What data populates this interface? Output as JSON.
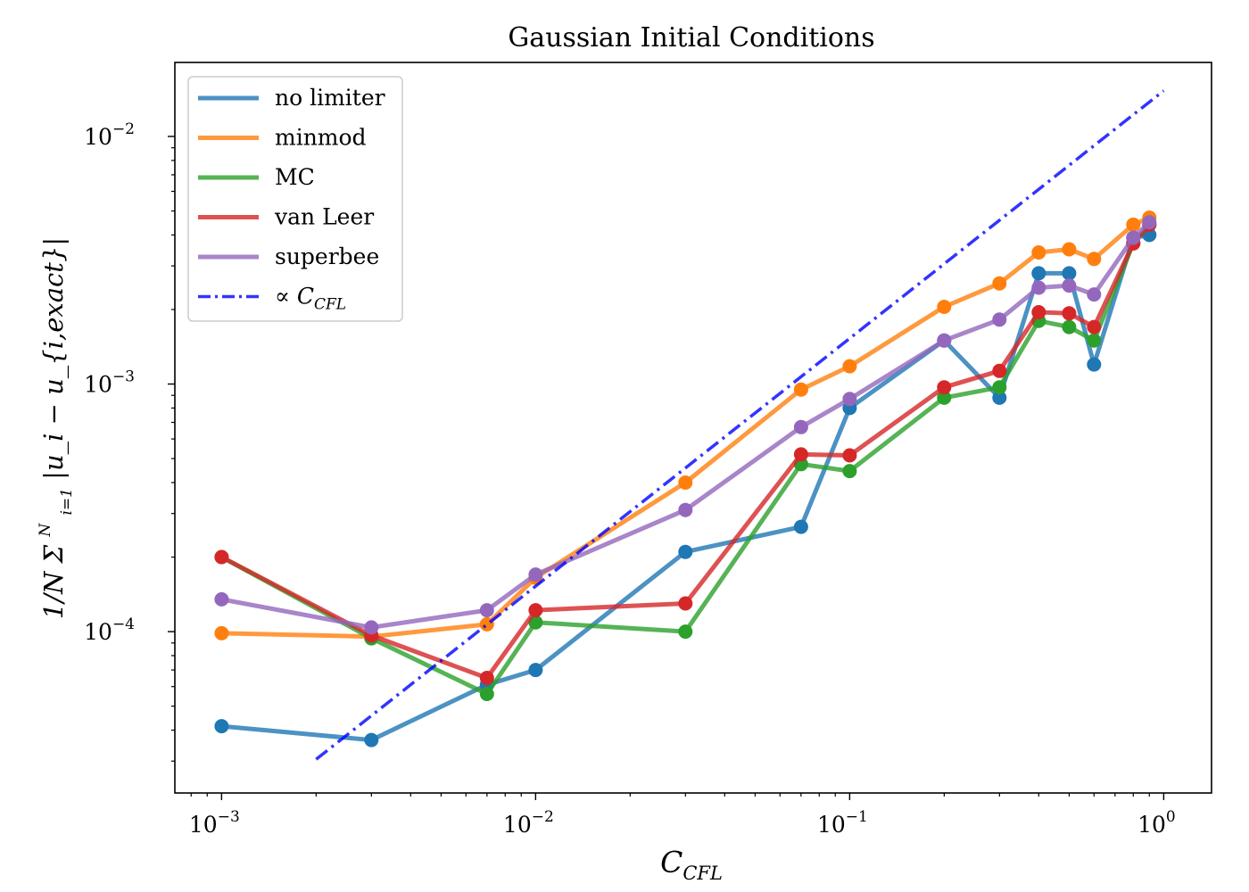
{
  "chart_data": {
    "type": "line",
    "title": "Gaussian Initial Conditions",
    "xlabel": {
      "main": "C",
      "sub": "CFL"
    },
    "ylabel": {
      "prefix": "1/N Σ",
      "sum_upper": "N",
      "sum_lower": "i=1",
      "body": "|u_i − u_{i,exact}|"
    },
    "xscale": "log",
    "yscale": "log",
    "xlim": [
      0.00071,
      1.42
    ],
    "ylim": [
      2.23e-05,
      0.0199
    ],
    "x_ticks": [
      {
        "value": 0.001,
        "base": "10",
        "exp": "−3"
      },
      {
        "value": 0.01,
        "base": "10",
        "exp": "−2"
      },
      {
        "value": 0.1,
        "base": "10",
        "exp": "−1"
      },
      {
        "value": 1,
        "base": "10",
        "exp": "0"
      }
    ],
    "y_ticks": [
      {
        "value": 0.0001,
        "base": "10",
        "exp": "−4"
      },
      {
        "value": 0.001,
        "base": "10",
        "exp": "−3"
      },
      {
        "value": 0.01,
        "base": "10",
        "exp": "−2"
      }
    ],
    "grid": false,
    "legend_position": "top-left",
    "series": [
      {
        "name": "no limiter",
        "color": "#1f77b4",
        "x": [
          0.001,
          0.003,
          0.007,
          0.01,
          0.03,
          0.07,
          0.1,
          0.2,
          0.3,
          0.4,
          0.5,
          0.6,
          0.8,
          0.9
        ],
        "y": [
          4.15e-05,
          3.65e-05,
          6.1e-05,
          7e-05,
          0.00021,
          0.000265,
          0.0008,
          0.0015,
          0.00088,
          0.0028,
          0.0028,
          0.0012,
          0.0039,
          0.004
        ]
      },
      {
        "name": "minmod",
        "color": "#ff7f0e",
        "x": [
          0.001,
          0.003,
          0.007,
          0.01,
          0.03,
          0.07,
          0.1,
          0.2,
          0.3,
          0.4,
          0.5,
          0.6,
          0.8,
          0.9
        ],
        "y": [
          9.85e-05,
          9.55e-05,
          0.000107,
          0.000165,
          0.0004,
          0.00095,
          0.00118,
          0.00205,
          0.00255,
          0.0034,
          0.0035,
          0.0032,
          0.0044,
          0.0047
        ]
      },
      {
        "name": "MC",
        "color": "#2ca02c",
        "x": [
          0.001,
          0.003,
          0.007,
          0.01,
          0.03,
          0.07,
          0.1,
          0.2,
          0.3,
          0.4,
          0.5,
          0.6,
          0.8,
          0.9
        ],
        "y": [
          0.0002,
          9.4e-05,
          5.6e-05,
          0.000109,
          0.0001,
          0.000475,
          0.000445,
          0.00088,
          0.00097,
          0.0018,
          0.0017,
          0.0015,
          0.0037,
          0.0044
        ]
      },
      {
        "name": "van Leer",
        "color": "#d62728",
        "x": [
          0.001,
          0.003,
          0.007,
          0.01,
          0.03,
          0.07,
          0.1,
          0.2,
          0.3,
          0.4,
          0.5,
          0.6,
          0.8,
          0.9
        ],
        "y": [
          0.0002,
          9.65e-05,
          6.5e-05,
          0.000122,
          0.00013,
          0.00052,
          0.000515,
          0.00097,
          0.00113,
          0.00195,
          0.00193,
          0.0017,
          0.0037,
          0.0044
        ]
      },
      {
        "name": "superbee",
        "color": "#9467bd",
        "x": [
          0.001,
          0.003,
          0.007,
          0.01,
          0.03,
          0.07,
          0.1,
          0.2,
          0.3,
          0.4,
          0.5,
          0.6,
          0.8,
          0.9
        ],
        "y": [
          0.000135,
          0.000104,
          0.000122,
          0.00017,
          0.00031,
          0.00067,
          0.00087,
          0.0015,
          0.00182,
          0.00245,
          0.0025,
          0.0023,
          0.0039,
          0.0045
        ]
      }
    ],
    "reference_line": {
      "name": "∝ C",
      "name_sub": "CFL",
      "color": "#0000ff",
      "x": [
        0.002,
        1.0
      ],
      "y": [
        3.05e-05,
        0.0153
      ]
    }
  }
}
